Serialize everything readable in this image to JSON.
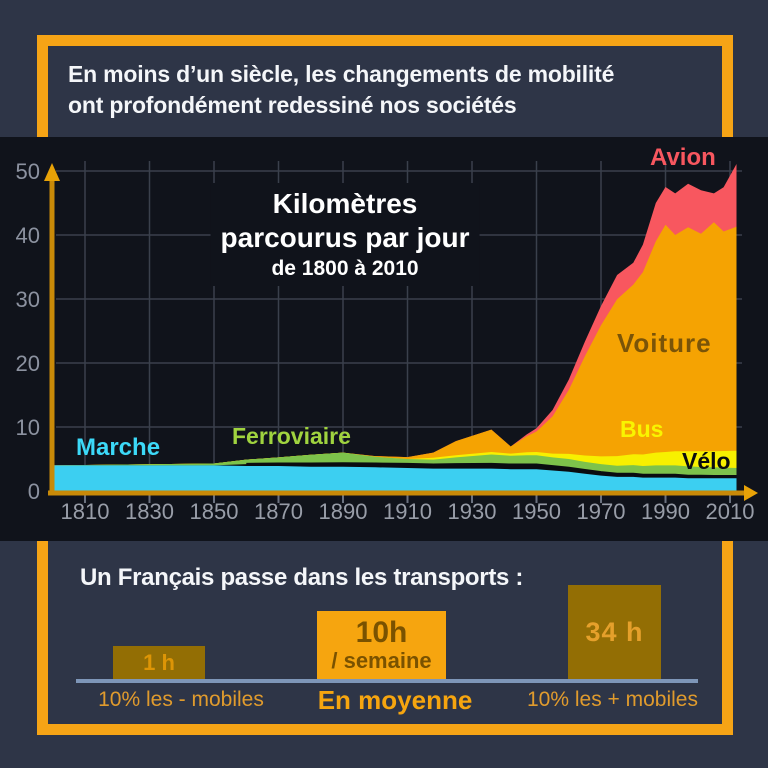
{
  "header": {
    "line1": "En moins d’un siècle, les changements de mobilité",
    "line2": "ont profondément redessiné nos sociétés"
  },
  "chart_data": {
    "type": "area",
    "stacked": true,
    "title_lines": [
      "Kilomètres",
      "parcourus par jour"
    ],
    "subtitle": "de 1800 à 2010",
    "xlim": [
      1800,
      2012
    ],
    "ylim": [
      0,
      50
    ],
    "yticks": [
      0,
      10,
      20,
      30,
      40,
      50
    ],
    "xticks": [
      1810,
      1830,
      1850,
      1870,
      1890,
      1910,
      1930,
      1950,
      1970,
      1990,
      2010
    ],
    "grid": true,
    "legend_position": "labels-on-chart",
    "x": [
      1800,
      1850,
      1860,
      1870,
      1880,
      1890,
      1900,
      1910,
      1918,
      1925,
      1936,
      1942,
      1947,
      1950,
      1955,
      1960,
      1965,
      1970,
      1975,
      1980,
      1983,
      1987,
      1990,
      1993,
      1997,
      2001,
      2005,
      2008,
      2012
    ],
    "series": [
      {
        "name": "Marche",
        "color": "#3CCFF1",
        "label_color": "#3CD9F8",
        "values": [
          4.0,
          4.0,
          3.9,
          3.9,
          3.8,
          3.8,
          3.7,
          3.6,
          3.5,
          3.5,
          3.5,
          3.4,
          3.4,
          3.4,
          3.2,
          3.0,
          2.7,
          2.4,
          2.2,
          2.2,
          2.1,
          2.1,
          2.1,
          2.1,
          2.0,
          2.0,
          2.0,
          2.0,
          2.0
        ]
      },
      {
        "name": "Vélo",
        "color": "#0A0C10",
        "label_color": "#0A0C10",
        "values": [
          0,
          0,
          0.3,
          0.35,
          0.45,
          0.5,
          0.55,
          0.6,
          0.6,
          0.65,
          0.7,
          0.7,
          0.7,
          0.7,
          0.65,
          0.6,
          0.55,
          0.5,
          0.45,
          0.45,
          0.4,
          0.4,
          0.4,
          0.4,
          0.35,
          0.35,
          0.3,
          0.3,
          0.3
        ]
      },
      {
        "name": "Ferroviaire",
        "color": "#7DC24B",
        "label_color": "#A0D33F",
        "values": [
          0,
          0.3,
          0.7,
          1.0,
          1.4,
          1.7,
          1.1,
          0.8,
          0.8,
          1.1,
          1.5,
          1.4,
          1.5,
          1.5,
          1.4,
          1.4,
          1.3,
          1.3,
          1.3,
          1.4,
          1.4,
          1.5,
          1.5,
          1.5,
          1.5,
          1.4,
          1.4,
          1.35,
          1.3
        ]
      },
      {
        "name": "Bus",
        "color": "#F7F000",
        "label_color": "#F9F400",
        "values": [
          0,
          0,
          0,
          0,
          0,
          0,
          0,
          0,
          0.3,
          0.35,
          0.4,
          0.35,
          0.45,
          0.5,
          0.6,
          0.8,
          1.0,
          1.2,
          1.5,
          1.7,
          1.8,
          2.0,
          2.1,
          2.2,
          2.35,
          2.45,
          2.5,
          2.6,
          2.7
        ]
      },
      {
        "name": "Voiture",
        "color": "#F5A302",
        "label_color": "#7A5408",
        "values": [
          0,
          0,
          0,
          0,
          0,
          0,
          0.1,
          0.3,
          0.8,
          2.2,
          3.5,
          1.1,
          2.5,
          3.2,
          5.8,
          10.0,
          15.5,
          20.5,
          24.5,
          26.5,
          28.5,
          33.0,
          35.5,
          33.8,
          35.0,
          34.0,
          35.8,
          34.3,
          35.0
        ]
      },
      {
        "name": "Avion",
        "color": "#F8575F",
        "label_color": "#F8575F",
        "values": [
          0,
          0,
          0,
          0,
          0,
          0,
          0,
          0,
          0,
          0,
          0,
          0,
          0.3,
          0.5,
          1.0,
          1.6,
          2.3,
          3.0,
          3.8,
          3.4,
          4.3,
          6.0,
          5.9,
          6.5,
          6.8,
          6.8,
          4.5,
          6.9,
          9.8
        ]
      }
    ]
  },
  "bottom": {
    "heading": "Un Français passe dans les transports :",
    "bars": [
      {
        "value": "1 h",
        "sublabel": "10% les - mobiles"
      },
      {
        "value": "10h",
        "value2": "/ semaine",
        "sublabel": "En moyenne"
      },
      {
        "value": "34 h",
        "sublabel": "10% les + mobiles"
      }
    ]
  },
  "colors": {
    "background": "#2E3547",
    "chart_background": "#10131B",
    "frame": "#F6A416",
    "axis": "#C98A08",
    "axis_arrow": "#E8A207",
    "gridline": "#3A404C",
    "tick_label": "#989DA8",
    "bar_side": "#936E04",
    "bar_middle": "#F6A50F",
    "baseline": "#7E96B8"
  }
}
